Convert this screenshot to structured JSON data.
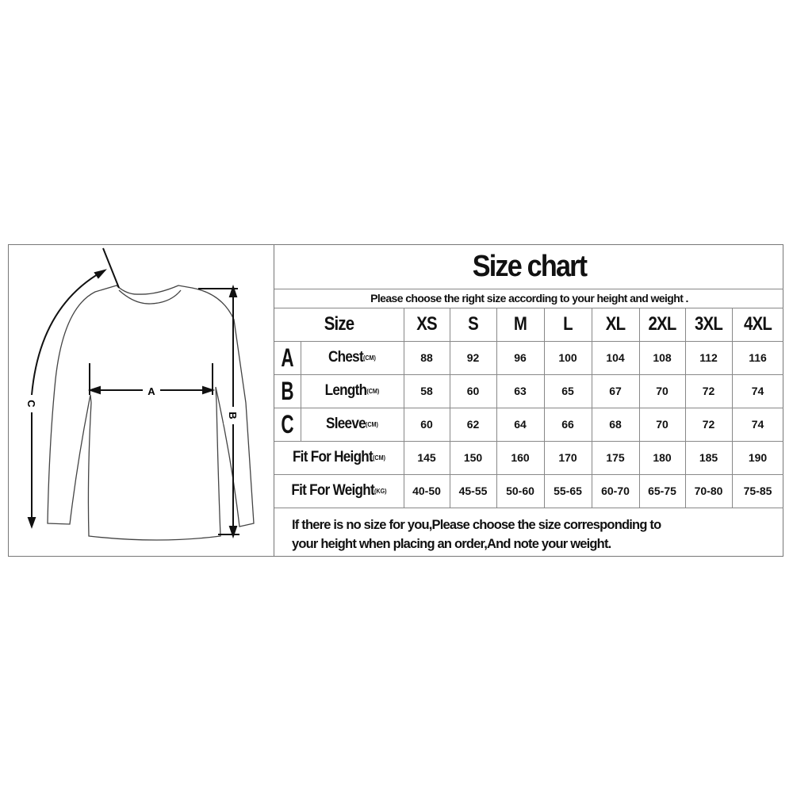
{
  "title": "Size chart",
  "subtitle": "Please choose the right size according to your height and weight .",
  "size_header": "Size",
  "sizes": [
    "XS",
    "S",
    "M",
    "L",
    "XL",
    "2XL",
    "3XL",
    "4XL"
  ],
  "rows": [
    {
      "letter": "A",
      "label": "Chest",
      "unit": "(CM)",
      "values": [
        "88",
        "92",
        "96",
        "100",
        "104",
        "108",
        "112",
        "116"
      ]
    },
    {
      "letter": "B",
      "label": "Length",
      "unit": "(CM)",
      "values": [
        "58",
        "60",
        "63",
        "65",
        "67",
        "70",
        "72",
        "74"
      ]
    },
    {
      "letter": "C",
      "label": "Sleeve",
      "unit": "(CM)",
      "values": [
        "60",
        "62",
        "64",
        "66",
        "68",
        "70",
        "72",
        "74"
      ]
    },
    {
      "letter": "",
      "label": "Fit For Height",
      "unit": "(CM)",
      "values": [
        "145",
        "150",
        "160",
        "170",
        "175",
        "180",
        "185",
        "190"
      ]
    },
    {
      "letter": "",
      "label": "Fit For Weight",
      "unit": "(KG)",
      "values": [
        "40-50",
        "45-55",
        "50-60",
        "55-65",
        "60-70",
        "65-75",
        "70-80",
        "75-85"
      ]
    }
  ],
  "note": {
    "line1": "If there is no size for you,Please choose the size corresponding to",
    "line2": "your height when placing an order,And note your weight."
  },
  "diagram": {
    "labels": {
      "a": "A",
      "b": "B",
      "c": "C"
    }
  }
}
